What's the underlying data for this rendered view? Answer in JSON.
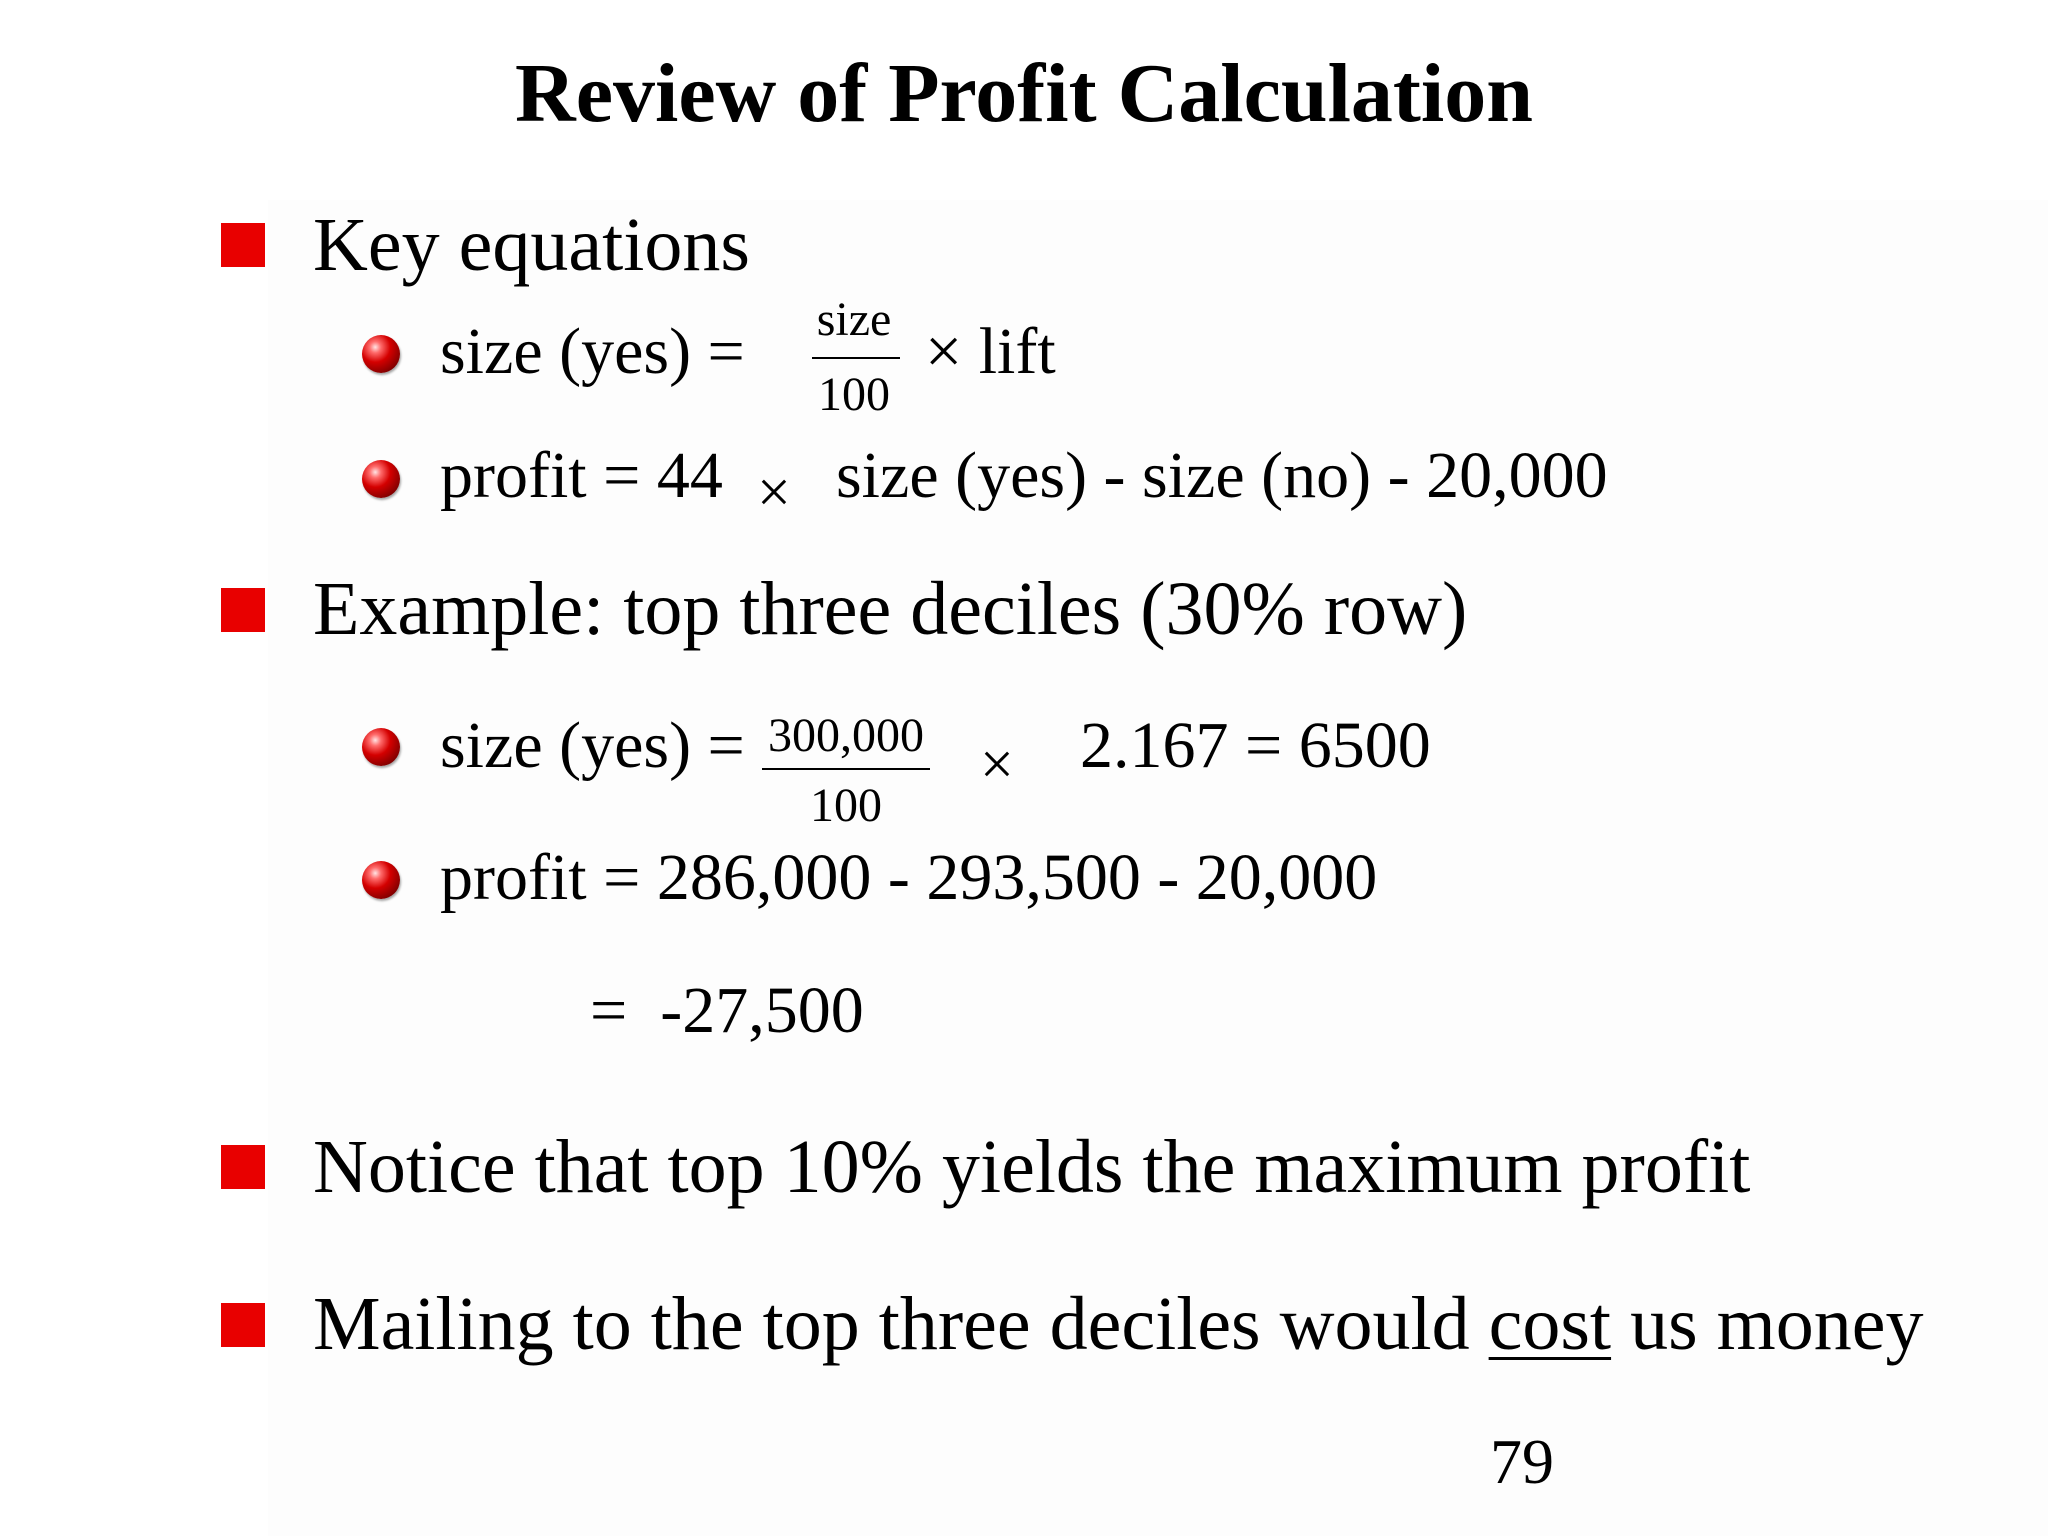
{
  "slide": {
    "title": "Review of Profit Calculation",
    "page_number": "79",
    "bullets": {
      "key_equations": {
        "label": "Key equations",
        "eq1": {
          "lhs": "size (yes) =",
          "frac_num": "size",
          "frac_den": "100",
          "rhs": "× lift"
        },
        "eq2": {
          "lhs": "profit = 44",
          "times": "×",
          "rhs": "size (yes) - size (no) - 20,000"
        }
      },
      "example": {
        "label": "Example: top three deciles (30% row)",
        "eq1": {
          "lhs": "size (yes) =",
          "frac_num": "300,000",
          "frac_den": "100",
          "times": "×",
          "rhs": "2.167 = 6500"
        },
        "eq2": {
          "text": "profit = 286,000 - 293,500 - 20,000",
          "result": "=  -27,500"
        }
      },
      "notice": {
        "label": "Notice that top 10% yields the maximum profit"
      },
      "mailing": {
        "before": "Mailing to the top three deciles would",
        "underlined": "cost",
        "after": "us money"
      }
    },
    "colors": {
      "bullet_square": "#e80000",
      "bullet_ball": "#c00000",
      "text": "#000000",
      "background": "#ffffff"
    },
    "icons": {
      "level1_bullet": "red-square-icon",
      "level2_bullet": "red-ball-icon"
    }
  }
}
